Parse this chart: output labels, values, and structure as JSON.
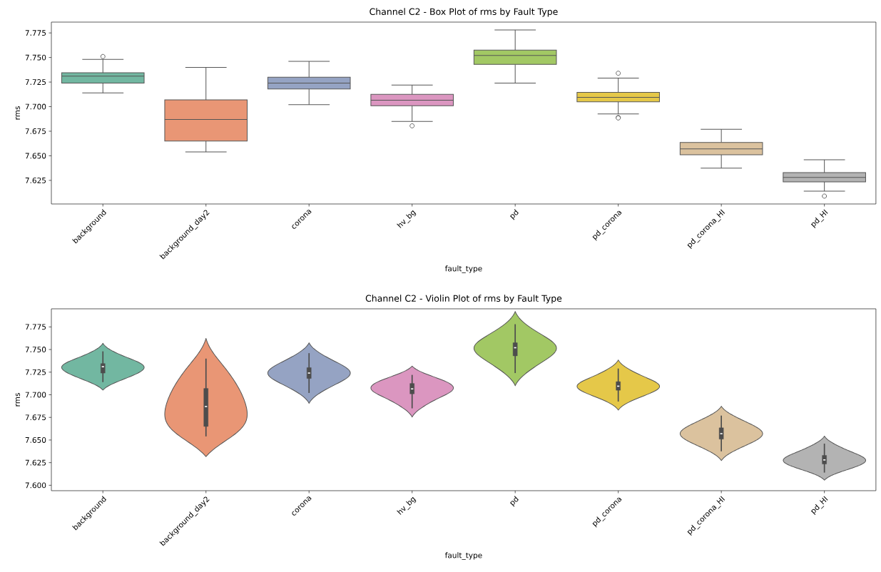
{
  "chart_data": [
    {
      "type": "box",
      "title": "Channel C2 - Box Plot of rms by Fault Type",
      "xlabel": "fault_type",
      "ylabel": "rms",
      "categories": [
        "background",
        "background_day2",
        "corona",
        "hv_bg",
        "pd",
        "pd_corona",
        "pd_corona_HI",
        "pd_HI"
      ],
      "colors": [
        "#72b7a1",
        "#e99675",
        "#95a3c3",
        "#db96c0",
        "#a2c864",
        "#e5c849",
        "#dbc29e",
        "#b3b3b3"
      ],
      "boxes": [
        {
          "low": 7.714,
          "q1": 7.724,
          "median": 7.731,
          "q3": 7.7345,
          "high": 7.748,
          "outliers": [
            7.751
          ]
        },
        {
          "low": 7.654,
          "q1": 7.665,
          "median": 7.687,
          "q3": 7.707,
          "high": 7.74
        },
        {
          "low": 7.702,
          "q1": 7.718,
          "median": 7.724,
          "q3": 7.73,
          "high": 7.746
        },
        {
          "low": 7.685,
          "q1": 7.701,
          "median": 7.7065,
          "q3": 7.7125,
          "high": 7.722,
          "outliers": [
            7.6805
          ]
        },
        {
          "low": 7.724,
          "q1": 7.743,
          "median": 7.752,
          "q3": 7.7575,
          "high": 7.778
        },
        {
          "low": 7.6925,
          "q1": 7.705,
          "median": 7.7095,
          "q3": 7.7145,
          "high": 7.729,
          "outliers": [
            7.734,
            7.689,
            7.6885
          ]
        },
        {
          "low": 7.6375,
          "q1": 7.651,
          "median": 7.657,
          "q3": 7.6635,
          "high": 7.677
        },
        {
          "low": 7.614,
          "q1": 7.6235,
          "median": 7.628,
          "q3": 7.633,
          "high": 7.646,
          "outliers": [
            7.609
          ]
        }
      ],
      "ylim": [
        7.601,
        7.786
      ],
      "yticks": [
        {
          "value": 7.625,
          "label": "7.625"
        },
        {
          "value": 7.65,
          "label": "7.650"
        },
        {
          "value": 7.675,
          "label": "7.675"
        },
        {
          "value": 7.7,
          "label": "7.700"
        },
        {
          "value": 7.725,
          "label": "7.725"
        },
        {
          "value": 7.75,
          "label": "7.750"
        },
        {
          "value": 7.775,
          "label": "7.775"
        }
      ]
    },
    {
      "type": "box",
      "title": "Channel C2 - Violin Plot of rms by Fault Type",
      "xlabel": "fault_type",
      "ylabel": "rms",
      "categories": [
        "background",
        "background_day2",
        "corona",
        "hv_bg",
        "pd",
        "pd_corona",
        "pd_corona_HI",
        "pd_HI"
      ],
      "color": "#4d4d4d",
      "boxes": [
        {
          "low": 7.714,
          "q1": 7.724,
          "median": 7.731,
          "q3": 7.7345,
          "high": 7.748
        },
        {
          "low": 7.654,
          "q1": 7.665,
          "median": 7.687,
          "q3": 7.707,
          "high": 7.74
        },
        {
          "low": 7.702,
          "q1": 7.718,
          "median": 7.724,
          "q3": 7.73,
          "high": 7.746
        },
        {
          "low": 7.685,
          "q1": 7.701,
          "median": 7.7065,
          "q3": 7.7125,
          "high": 7.722
        },
        {
          "low": 7.724,
          "q1": 7.743,
          "median": 7.752,
          "q3": 7.7575,
          "high": 7.778
        },
        {
          "low": 7.6925,
          "q1": 7.705,
          "median": 7.7095,
          "q3": 7.7145,
          "high": 7.729
        },
        {
          "low": 7.6375,
          "q1": 7.651,
          "median": 7.657,
          "q3": 7.6635,
          "high": 7.677
        },
        {
          "low": 7.614,
          "q1": 7.6235,
          "median": 7.628,
          "q3": 7.633,
          "high": 7.646
        }
      ],
      "ylim": [
        7.594,
        7.795
      ],
      "yticks": [
        {
          "value": 7.6,
          "label": "7.600"
        },
        {
          "value": 7.625,
          "label": "7.625"
        },
        {
          "value": 7.65,
          "label": "7.650"
        },
        {
          "value": 7.675,
          "label": "7.675"
        },
        {
          "value": 7.7,
          "label": "7.700"
        },
        {
          "value": 7.725,
          "label": "7.725"
        },
        {
          "value": 7.75,
          "label": "7.750"
        },
        {
          "value": 7.775,
          "label": "7.775"
        }
      ]
    }
  ]
}
